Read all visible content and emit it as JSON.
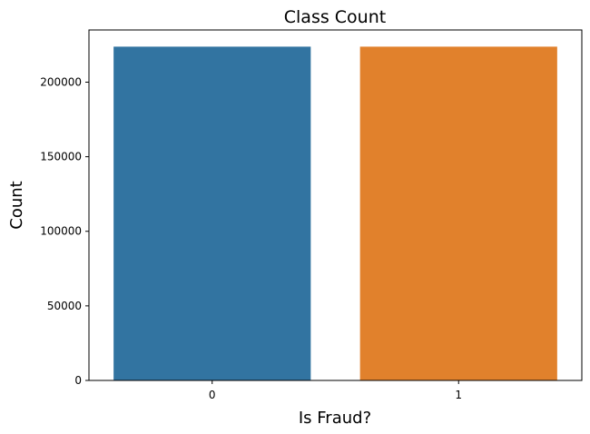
{
  "chart_data": {
    "type": "bar",
    "title": "Class Count",
    "xlabel": "Is Fraud?",
    "ylabel": "Count",
    "categories": [
      "0",
      "1"
    ],
    "values": [
      223800,
      223800
    ],
    "colors": [
      "#3274a1",
      "#e1812c"
    ],
    "ylim": [
      0,
      235000
    ],
    "yticks": [
      0,
      50000,
      100000,
      150000,
      200000
    ],
    "ytick_labels": [
      "0",
      "50000",
      "100000",
      "150000",
      "200000"
    ],
    "grid": false,
    "legend": "none"
  }
}
